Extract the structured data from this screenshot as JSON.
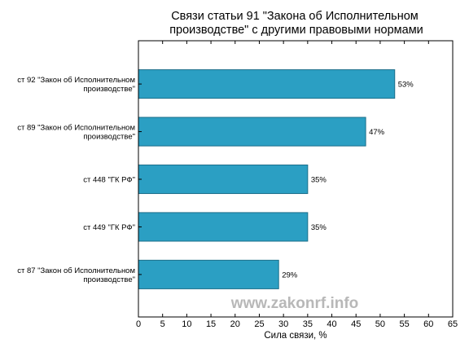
{
  "chart_data": {
    "type": "bar",
    "orientation": "horizontal",
    "title_lines": [
      "Связи статьи 91 \"Закона об Исполнительном",
      "производстве\" с другими правовыми нормами"
    ],
    "categories": [
      [
        "ст 92 \"Закон об Исполнительном",
        "производстве\""
      ],
      [
        "ст 89 \"Закон об Исполнительном",
        "производстве\""
      ],
      [
        "ст 448 \"ГК РФ\""
      ],
      [
        "ст 449 \"ГК РФ\""
      ],
      [
        "ст 87 \"Закон об Исполнительном",
        "производстве\""
      ]
    ],
    "values": [
      53,
      47,
      35,
      35,
      29
    ],
    "value_labels": [
      "53%",
      "47%",
      "35%",
      "35%",
      "29%"
    ],
    "xlabel": "Сила связи, %",
    "xlim": [
      0,
      65
    ],
    "xticks": [
      0,
      5,
      10,
      15,
      20,
      25,
      30,
      35,
      40,
      45,
      50,
      55,
      60,
      65
    ],
    "bar_color": "#2b9fc3",
    "bar_edge_color": "#1c6f8a",
    "grid": false
  },
  "watermark": "www.zakonrf.info"
}
